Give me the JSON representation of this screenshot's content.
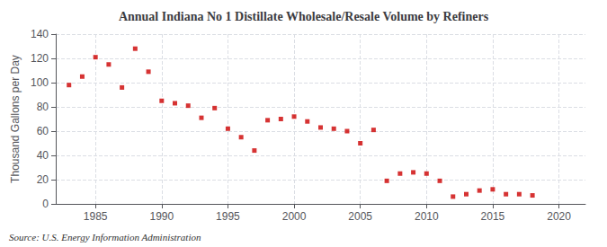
{
  "chart_data": {
    "type": "scatter",
    "title": "Annual Indiana No 1 Distillate Wholesale/Resale Volume by Refiners",
    "ylabel": "Thousand Gallons per Day",
    "annotation": "Source: U.S. Energy Information Administration",
    "x": [
      1983,
      1984,
      1985,
      1986,
      1987,
      1988,
      1989,
      1990,
      1991,
      1992,
      1993,
      1994,
      1995,
      1996,
      1997,
      1998,
      1999,
      2000,
      2001,
      2002,
      2003,
      2004,
      2005,
      2006,
      2007,
      2008,
      2009,
      2010,
      2011,
      2012,
      2013,
      2014,
      2015,
      2016,
      2017,
      2018
    ],
    "values": [
      98,
      105,
      121,
      115,
      96,
      128,
      109,
      85,
      83,
      81,
      71,
      79,
      62,
      55,
      44,
      69,
      70,
      72,
      68,
      63,
      62,
      60,
      50,
      61,
      19,
      25,
      26,
      25,
      19,
      6,
      8,
      11,
      12,
      8,
      8,
      7
    ],
    "color": "#cc0000",
    "marker": "square",
    "xlim": [
      1982,
      2022
    ],
    "xticks": [
      1985,
      1990,
      1995,
      2000,
      2005,
      2010,
      2015,
      2020
    ],
    "ylim": [
      0,
      140
    ],
    "yticks": [
      0,
      20,
      40,
      60,
      80,
      100,
      120,
      140
    ],
    "grid": true
  }
}
